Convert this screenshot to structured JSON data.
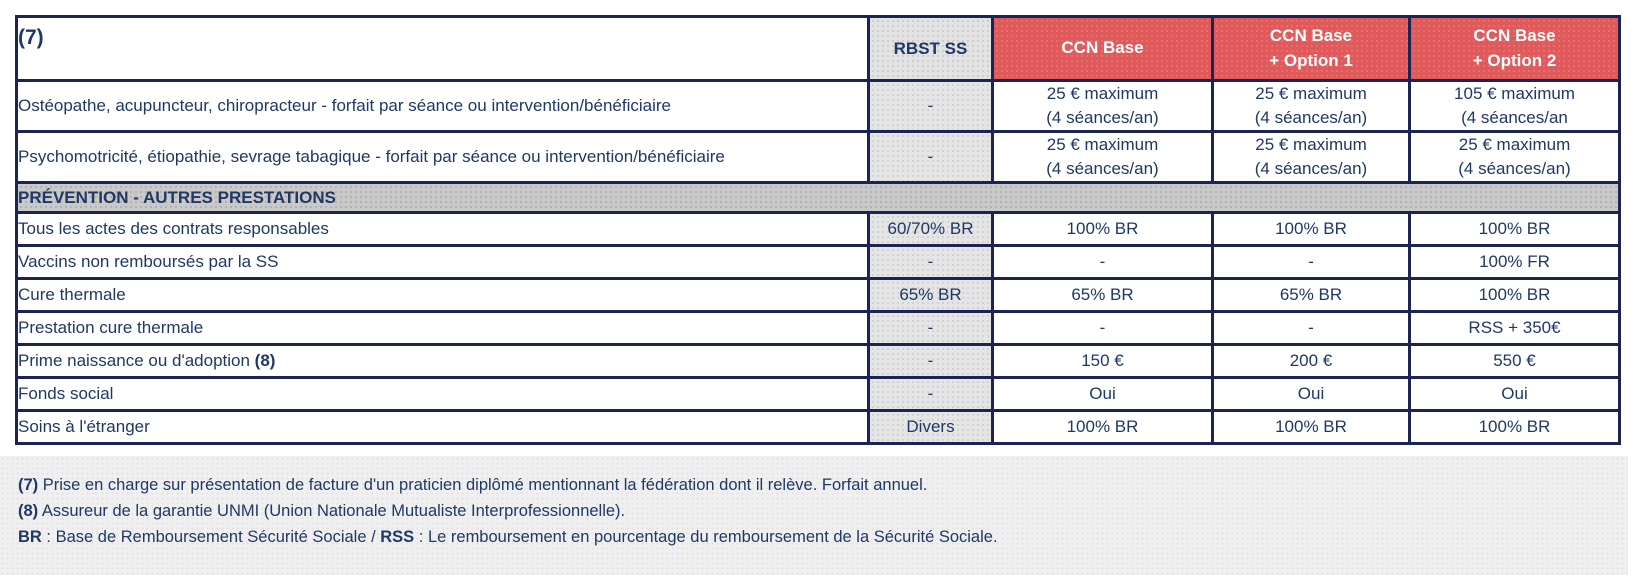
{
  "page": {
    "corner_label": "(7)"
  },
  "colors": {
    "accent_red": "#e15a5b",
    "border_navy": "#1b2452",
    "text_navy": "#1f3864",
    "gray_column_header": "#e3e3e3",
    "gray_section_band": "#c9c9c9",
    "gray_footnotes_panel": "#f0f0f0"
  },
  "table": {
    "columns": [
      {
        "id": "label",
        "label": ""
      },
      {
        "id": "rbst",
        "label": "RBST SS"
      },
      {
        "id": "ccn_base",
        "label": "CCN Base"
      },
      {
        "id": "ccn_base_option_1",
        "label": "CCN Base\n+ Option 1"
      },
      {
        "id": "ccn_base_option_2",
        "label": "CCN Base\n+ Option 2"
      }
    ],
    "rows": [
      {
        "type": "data",
        "tall": true,
        "label": "Ostéopathe, acupuncteur, chiropracteur - forfait par séance ou intervention/bénéficiaire",
        "values": [
          "-",
          "25 € maximum\n(4 séances/an)",
          "25 € maximum\n(4 séances/an)",
          "105 € maximum\n(4 séances/an"
        ]
      },
      {
        "type": "data",
        "tall": true,
        "label": "Psychomotricité, étiopathie, sevrage tabagique - forfait par séance ou intervention/bénéficiaire",
        "values": [
          "-",
          "25 € maximum\n(4 séances/an)",
          "25 € maximum\n(4 séances/an)",
          "25 € maximum\n(4 séances/an)"
        ]
      },
      {
        "type": "section",
        "label": "PRÉVENTION - AUTRES PRESTATIONS"
      },
      {
        "type": "data",
        "label": "Tous les actes des contrats responsables",
        "values": [
          "60/70% BR",
          "100% BR",
          "100% BR",
          "100% BR"
        ]
      },
      {
        "type": "data",
        "label": "Vaccins non remboursés par la SS",
        "values": [
          "-",
          "-",
          "-",
          "100% FR"
        ]
      },
      {
        "type": "data",
        "label": "Cure thermale",
        "values": [
          "65% BR",
          "65% BR",
          "65% BR",
          "100% BR"
        ]
      },
      {
        "type": "data",
        "label": "Prestation cure thermale",
        "values": [
          "-",
          "-",
          "-",
          "RSS + 350€"
        ]
      },
      {
        "type": "data",
        "label": "Prime naissance ou d'adoption ",
        "label_bold_suffix": "(8)",
        "values": [
          "-",
          "150 €",
          "200 €",
          "550 €"
        ]
      },
      {
        "type": "data",
        "label": "Fonds social",
        "values": [
          "-",
          "Oui",
          "Oui",
          "Oui"
        ]
      },
      {
        "type": "data",
        "label": "Soins à l'étranger",
        "values": [
          "Divers",
          "100% BR",
          "100% BR",
          "100% BR"
        ]
      }
    ]
  },
  "footnotes": [
    {
      "segments": [
        {
          "text": "(7)",
          "bold": true
        },
        {
          "text": " Prise en charge sur présentation de facture d'un praticien diplômé mentionnant la fédération dont il relève. Forfait annuel.",
          "bold": false
        }
      ]
    },
    {
      "segments": [
        {
          "text": "(8)",
          "bold": true
        },
        {
          "text": " Assureur de la garantie UNMI (Union Nationale Mutualiste Interprofessionnelle).",
          "bold": false
        }
      ]
    },
    {
      "segments": [
        {
          "text": "BR",
          "bold": true
        },
        {
          "text": " : Base de Remboursement Sécurité Sociale / ",
          "bold": false
        },
        {
          "text": "RSS",
          "bold": true
        },
        {
          "text": " : Le remboursement en pourcentage du remboursement de la Sécurité Sociale.",
          "bold": false
        }
      ]
    }
  ]
}
